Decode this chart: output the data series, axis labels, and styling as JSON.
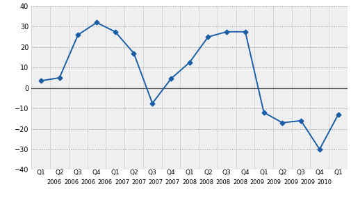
{
  "x_labels_q": [
    "Q1",
    "Q2",
    "Q3",
    "Q4",
    "Q1",
    "Q2",
    "Q3",
    "Q4",
    "Q1",
    "Q2",
    "Q3",
    "Q4",
    "Q1",
    "Q2",
    "Q3",
    "Q4",
    "Q1"
  ],
  "x_labels_y": [
    "2006",
    "2006",
    "2006",
    "2006",
    "2007",
    "2007",
    "2007",
    "2007",
    "2008",
    "2008",
    "2008",
    "2008",
    "2009",
    "2009",
    "2009",
    "2009",
    "2010"
  ],
  "values": [
    3.5,
    5.0,
    26.0,
    32.0,
    27.5,
    17.0,
    -7.5,
    4.5,
    12.5,
    25.0,
    27.5,
    27.5,
    -12.0,
    -17.0,
    -16.0,
    -30.0,
    -13.0
  ],
  "line_color": "#1A5EA6",
  "marker": "D",
  "marker_size": 3.5,
  "ylim": [
    -40,
    40
  ],
  "yticks": [
    -40,
    -30,
    -20,
    -10,
    0,
    10,
    20,
    30,
    40
  ],
  "grid_color": "#999999",
  "bg_color": "#FFFFFF",
  "plot_bg_color": "#EFEFEF",
  "linewidth": 1.4,
  "col_sep_color": "#CCCCCC",
  "zeroline_color": "#555555"
}
